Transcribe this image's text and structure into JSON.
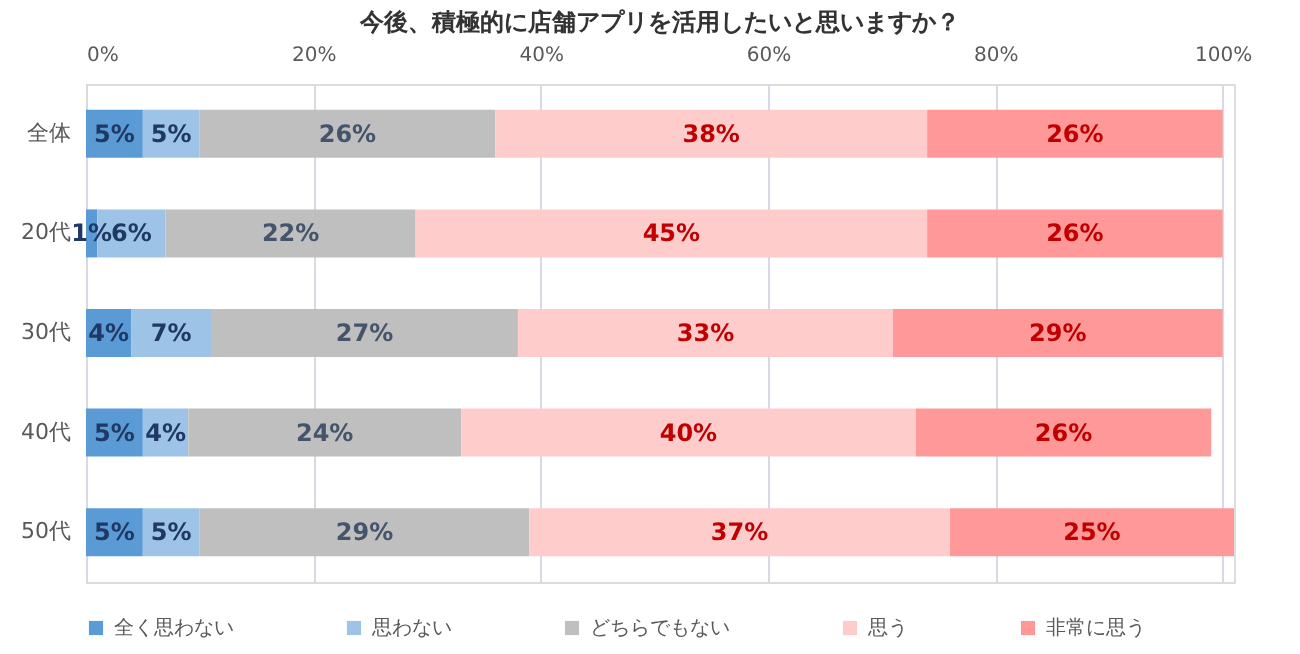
{
  "chart_data": {
    "type": "bar",
    "orientation": "horizontal",
    "stacked": true,
    "title": "今後、積極的に店舗アプリを活用したいと思いますか？",
    "categories": [
      "全体",
      "20代",
      "30代",
      "40代",
      "50代"
    ],
    "series": [
      {
        "name": "全く思わない",
        "color": "#5b9bd5",
        "values": [
          5,
          1,
          4,
          5,
          5
        ],
        "value_labels": [
          "5%",
          "1%",
          "4%",
          "5%",
          "5%"
        ]
      },
      {
        "name": "思わない",
        "color": "#9dc3e6",
        "values": [
          5,
          6,
          7,
          4,
          5
        ],
        "value_labels": [
          "5%",
          "6%",
          "7%",
          "4%",
          "5%"
        ]
      },
      {
        "name": "どちらでもない",
        "color": "#bfbfbf",
        "values": [
          26,
          22,
          27,
          24,
          29
        ],
        "value_labels": [
          "26%",
          "22%",
          "27%",
          "24%",
          "29%"
        ]
      },
      {
        "name": "思う",
        "color": "#ffcccc",
        "values": [
          38,
          45,
          33,
          40,
          37
        ],
        "value_labels": [
          "38%",
          "45%",
          "33%",
          "40%",
          "37%"
        ]
      },
      {
        "name": "非常に思う",
        "color": "#ff9999",
        "values": [
          26,
          26,
          29,
          26,
          25
        ],
        "value_labels": [
          "26%",
          "26%",
          "29%",
          "26%",
          "25%"
        ]
      }
    ],
    "xlim": [
      0,
      101
    ],
    "xticks": [
      {
        "value": 0,
        "label": "0%"
      },
      {
        "value": 20,
        "label": "20%"
      },
      {
        "value": 40,
        "label": "40%"
      },
      {
        "value": 60,
        "label": "60%"
      },
      {
        "value": 80,
        "label": "80%"
      },
      {
        "value": 100,
        "label": "100%"
      }
    ],
    "grid": "x",
    "legend": "bottom"
  }
}
